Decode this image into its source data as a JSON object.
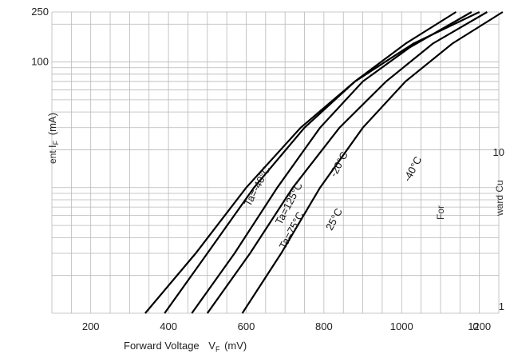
{
  "chart_data": {
    "type": "line",
    "title": "",
    "xlabel": "Forward Voltage",
    "xlabel_sub": "F",
    "xunit": "(mV)",
    "ylabel": "I",
    "ylabel_sub": "F",
    "yunit": "(mA)",
    "xlim": [
      100,
      1250
    ],
    "ylim": [
      1,
      250
    ],
    "y_scale": "log",
    "grid": true,
    "x_ticks": [
      "200",
      "400",
      "600",
      "800",
      "1000",
      "1200"
    ],
    "y_ticks": [
      "250",
      "100"
    ],
    "y_ticks_right": [
      "10",
      "1"
    ],
    "x_ticks_secondary": [
      "0"
    ],
    "stray_texts": [
      "ent",
      "For",
      "ward Cu"
    ],
    "series": [
      {
        "name": "Ta=-40°C",
        "x": [
          460,
          570,
          680,
          790,
          900,
          1020,
          1180
        ],
        "y": [
          1,
          3,
          10,
          30,
          70,
          130,
          250
        ]
      },
      {
        "name": "Ta=-20°C",
        "x": [
          340,
          470,
          600,
          740,
          880,
          1030,
          1200
        ],
        "y": [
          1,
          3,
          10,
          30,
          70,
          140,
          250
        ]
      },
      {
        "name": "Ta=75°C",
        "x": [
          390,
          500,
          620,
          750,
          880,
          1010,
          1140
        ],
        "y": [
          1,
          3,
          10,
          30,
          70,
          140,
          250
        ]
      },
      {
        "name": "Ta=25°C",
        "x": [
          500,
          610,
          720,
          840,
          960,
          1080,
          1220
        ],
        "y": [
          1,
          3,
          10,
          30,
          70,
          140,
          250
        ]
      },
      {
        "name": "Ta=125°C",
        "x": [
          590,
          690,
          790,
          900,
          1010,
          1130,
          1260
        ],
        "y": [
          1,
          3,
          10,
          30,
          70,
          140,
          250
        ]
      }
    ],
    "labels": [
      {
        "text": "Ta=-40°C",
        "anchor_x": 610,
        "anchor_y": 7
      },
      {
        "text": "Ta=125°C",
        "anchor_x": 690,
        "anchor_y": 5
      },
      {
        "text": "Ta=75°C",
        "anchor_x": 700,
        "anchor_y": 3.2
      },
      {
        "text": "-20°C",
        "anchor_x": 830,
        "anchor_y": 12
      },
      {
        "text": "25°C",
        "anchor_x": 820,
        "anchor_y": 4.5
      },
      {
        "text": "-40°C",
        "anchor_x": 1020,
        "anchor_y": 11
      }
    ]
  }
}
